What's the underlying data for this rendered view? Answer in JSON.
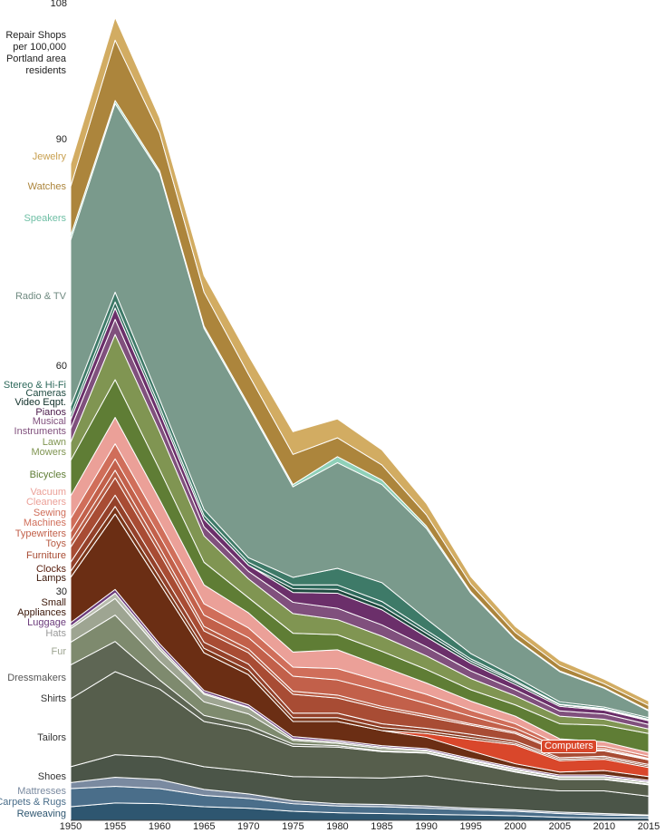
{
  "chart_data": {
    "type": "stacked_area",
    "y_label": "Repair Shops per 100,000 Portland area residents",
    "x": [
      1950,
      1955,
      1960,
      1965,
      1970,
      1975,
      1980,
      1985,
      1990,
      1995,
      2000,
      2005,
      2010,
      2015
    ],
    "ylim": [
      0,
      108
    ],
    "yticks": [
      30,
      60,
      90,
      108
    ],
    "series": [
      {
        "name": "Reweaving",
        "color": "#2e5670",
        "values": [
          1.8,
          2.3,
          2.2,
          1.8,
          1.6,
          1.2,
          1,
          0.9,
          0.8,
          0.7,
          0.6,
          0.4,
          0.3,
          0.3
        ]
      },
      {
        "name": "Carpets & Rugs",
        "color": "#4a6e8a",
        "values": [
          2.4,
          2.2,
          2,
          1.5,
          1.3,
          1,
          0.9,
          0.9,
          0.8,
          0.7,
          0.6,
          0.5,
          0.4,
          0.3
        ]
      },
      {
        "name": "Mattresses",
        "color": "#7a8aa0",
        "values": [
          0.8,
          1.2,
          1.2,
          0.8,
          0.6,
          0.4,
          0.3,
          0.3,
          0.3,
          0.2,
          0.2,
          0.2,
          0.2,
          0.1
        ]
      },
      {
        "name": "Shoes",
        "color": "#4b5548",
        "values": [
          2.1,
          3,
          3,
          3,
          3,
          3.2,
          3.5,
          3.5,
          4,
          3.5,
          3,
          2.8,
          3,
          2.5
        ]
      },
      {
        "name": "Tailors",
        "color": "#565e4c",
        "values": [
          9,
          11,
          9,
          6,
          5.5,
          4,
          4,
          3.5,
          3,
          2.5,
          2,
          1.5,
          1.5,
          1.5
        ]
      },
      {
        "name": "Shirts",
        "color": "#5e6654",
        "values": [
          4.5,
          4,
          1.2,
          0.8,
          0.6,
          0.3,
          0.2,
          0.1,
          0.1,
          0.1,
          0.1,
          0.1,
          0.1,
          0.1
        ]
      },
      {
        "name": "Dressmakers",
        "color": "#7e8a6e",
        "values": [
          3,
          3.5,
          2.5,
          1.8,
          1.5,
          0.5,
          0.3,
          0.3,
          0.2,
          0.2,
          0.2,
          0.2,
          0.2,
          0.2
        ]
      },
      {
        "name": "Fur",
        "color": "#9ea592",
        "values": [
          1.8,
          2.2,
          1.5,
          1,
          0.8,
          0.2,
          0.2,
          0.2,
          0.1,
          0.1,
          0.1,
          0.1,
          0.1,
          0.1
        ]
      },
      {
        "name": "Hats",
        "color": "#b8bcae",
        "values": [
          0.3,
          0.7,
          0.4,
          0.2,
          0.1,
          0,
          0,
          0,
          0,
          0,
          0,
          0,
          0,
          0
        ]
      },
      {
        "name": "Luggage",
        "color": "#6b3b7b",
        "values": [
          0.5,
          0.5,
          0.4,
          0.3,
          0.3,
          0.3,
          0.2,
          0.2,
          0.2,
          0.2,
          0.2,
          0.2,
          0.2,
          0.2
        ]
      },
      {
        "name": "Small Appliances",
        "color": "#6b2e14",
        "values": [
          6,
          10,
          8,
          5,
          4,
          2,
          2.5,
          2,
          1.5,
          1,
          0.5,
          0.4,
          0.6,
          0.5
        ]
      },
      {
        "name": "Computers",
        "color": "#d9472b",
        "values": [
          0,
          0,
          0,
          0,
          0,
          0,
          0,
          0,
          0.5,
          1.5,
          2.5,
          1.5,
          1.5,
          1.2
        ]
      },
      {
        "name": "Lamps",
        "color": "#7a3518",
        "values": [
          0.8,
          1,
          0.8,
          0.6,
          0.6,
          0.5,
          0.5,
          0.4,
          0.3,
          0.3,
          0.2,
          0.2,
          0.2,
          0.2
        ]
      },
      {
        "name": "Clocks",
        "color": "#94412a",
        "values": [
          1.2,
          1.5,
          1.2,
          0.8,
          0.8,
          0.6,
          0.6,
          0.5,
          0.4,
          0.4,
          0.3,
          0.2,
          0.2,
          0.2
        ]
      },
      {
        "name": "Furniture",
        "color": "#a84c34",
        "values": [
          2,
          2.3,
          2,
          1.5,
          1.5,
          2.5,
          2,
          2,
          1.5,
          1.2,
          1,
          0.8,
          0.7,
          0.6
        ]
      },
      {
        "name": "Toys",
        "color": "#b85c44",
        "values": [
          0.8,
          1,
          0.8,
          0.6,
          0.5,
          0.4,
          0.4,
          0.3,
          0.3,
          0.2,
          0.2,
          0.2,
          0.1,
          0.1
        ]
      },
      {
        "name": "Typewriters",
        "color": "#c2604a",
        "values": [
          1.2,
          1.5,
          1.5,
          1.5,
          1.5,
          2,
          2,
          2,
          1.5,
          1,
          0.5,
          0.3,
          0.2,
          0.1
        ]
      },
      {
        "name": "Sewing Machines",
        "color": "#d06e5a",
        "values": [
          1.8,
          2,
          1.8,
          1.5,
          1.3,
          1.2,
          1.5,
          1.3,
          1.2,
          0.8,
          0.6,
          0.4,
          0.3,
          0.3
        ]
      },
      {
        "name": "Vacuum Cleaners",
        "color": "#eba098",
        "values": [
          3,
          3.5,
          3,
          2.5,
          2,
          2,
          2.5,
          2,
          1.5,
          1.2,
          1,
          0.8,
          0.6,
          0.5
        ]
      },
      {
        "name": "Bicycles",
        "color": "#5f7d35",
        "values": [
          4.7,
          5,
          4,
          3,
          2,
          2.5,
          2,
          2,
          1.8,
          1.5,
          1.5,
          2,
          2.2,
          2.5
        ]
      },
      {
        "name": "Lawn Mowers",
        "color": "#809552",
        "values": [
          2.4,
          6,
          5,
          3.5,
          2.5,
          2.6,
          2,
          2,
          1.8,
          1.5,
          1.2,
          1,
          0.8,
          0.6
        ]
      },
      {
        "name": "Musical Instruments",
        "color": "#80507d",
        "values": [
          1.8,
          2,
          1.5,
          1.2,
          1,
          1.5,
          1.5,
          1.5,
          1.2,
          1,
          0.8,
          0.7,
          0.7,
          0.6
        ]
      },
      {
        "name": "Pianos",
        "color": "#6b2f6a",
        "values": [
          1.2,
          1.5,
          1.2,
          1,
          0.8,
          1.3,
          2,
          2,
          1.3,
          1,
          0.7,
          0.6,
          0.5,
          0.5
        ]
      },
      {
        "name": "Video Eqpt.",
        "color": "#1f4a40",
        "values": [
          0,
          0,
          0,
          0,
          0,
          0.5,
          0.5,
          0.5,
          0.5,
          0.3,
          0.3,
          0.2,
          0.1,
          0.1
        ]
      },
      {
        "name": "Cameras",
        "color": "#2f6a5c",
        "values": [
          0.6,
          0.8,
          0.6,
          0.5,
          0.4,
          0.5,
          0.6,
          0.6,
          0.4,
          0.3,
          0.2,
          0.1,
          0.1,
          0.1
        ]
      },
      {
        "name": "Stereo & Hi-Fi",
        "color": "#3e7a68",
        "values": [
          1.2,
          1.3,
          1,
          0.8,
          0.6,
          1,
          2.2,
          2.5,
          1.5,
          0.7,
          0.5,
          0.3,
          0.2,
          0.2
        ]
      },
      {
        "name": "Radio & TV",
        "color": "#7a9a8c",
        "values": [
          22,
          25,
          30,
          24,
          20,
          12,
          14,
          13,
          12,
          8,
          5,
          4,
          2.5,
          0.9
        ]
      },
      {
        "name": "Speakers",
        "color": "#8fd0b8",
        "values": [
          0.6,
          0.4,
          0.3,
          0.3,
          0.3,
          0.3,
          0.8,
          0.6,
          0.3,
          0.2,
          0.1,
          0.1,
          0.1,
          0.1
        ]
      },
      {
        "name": "Watches",
        "color": "#ac853c",
        "values": [
          6.5,
          8,
          5,
          4.5,
          4,
          4,
          2.5,
          2,
          1.5,
          1,
          0.8,
          0.7,
          0.5,
          0.6
        ]
      },
      {
        "name": "Jewelry",
        "color": "#d2ac62",
        "values": [
          3,
          3,
          2,
          2.2,
          2.5,
          3,
          2.5,
          2,
          1.5,
          1,
          0.8,
          0.7,
          0.6,
          0.6
        ]
      }
    ]
  }
}
